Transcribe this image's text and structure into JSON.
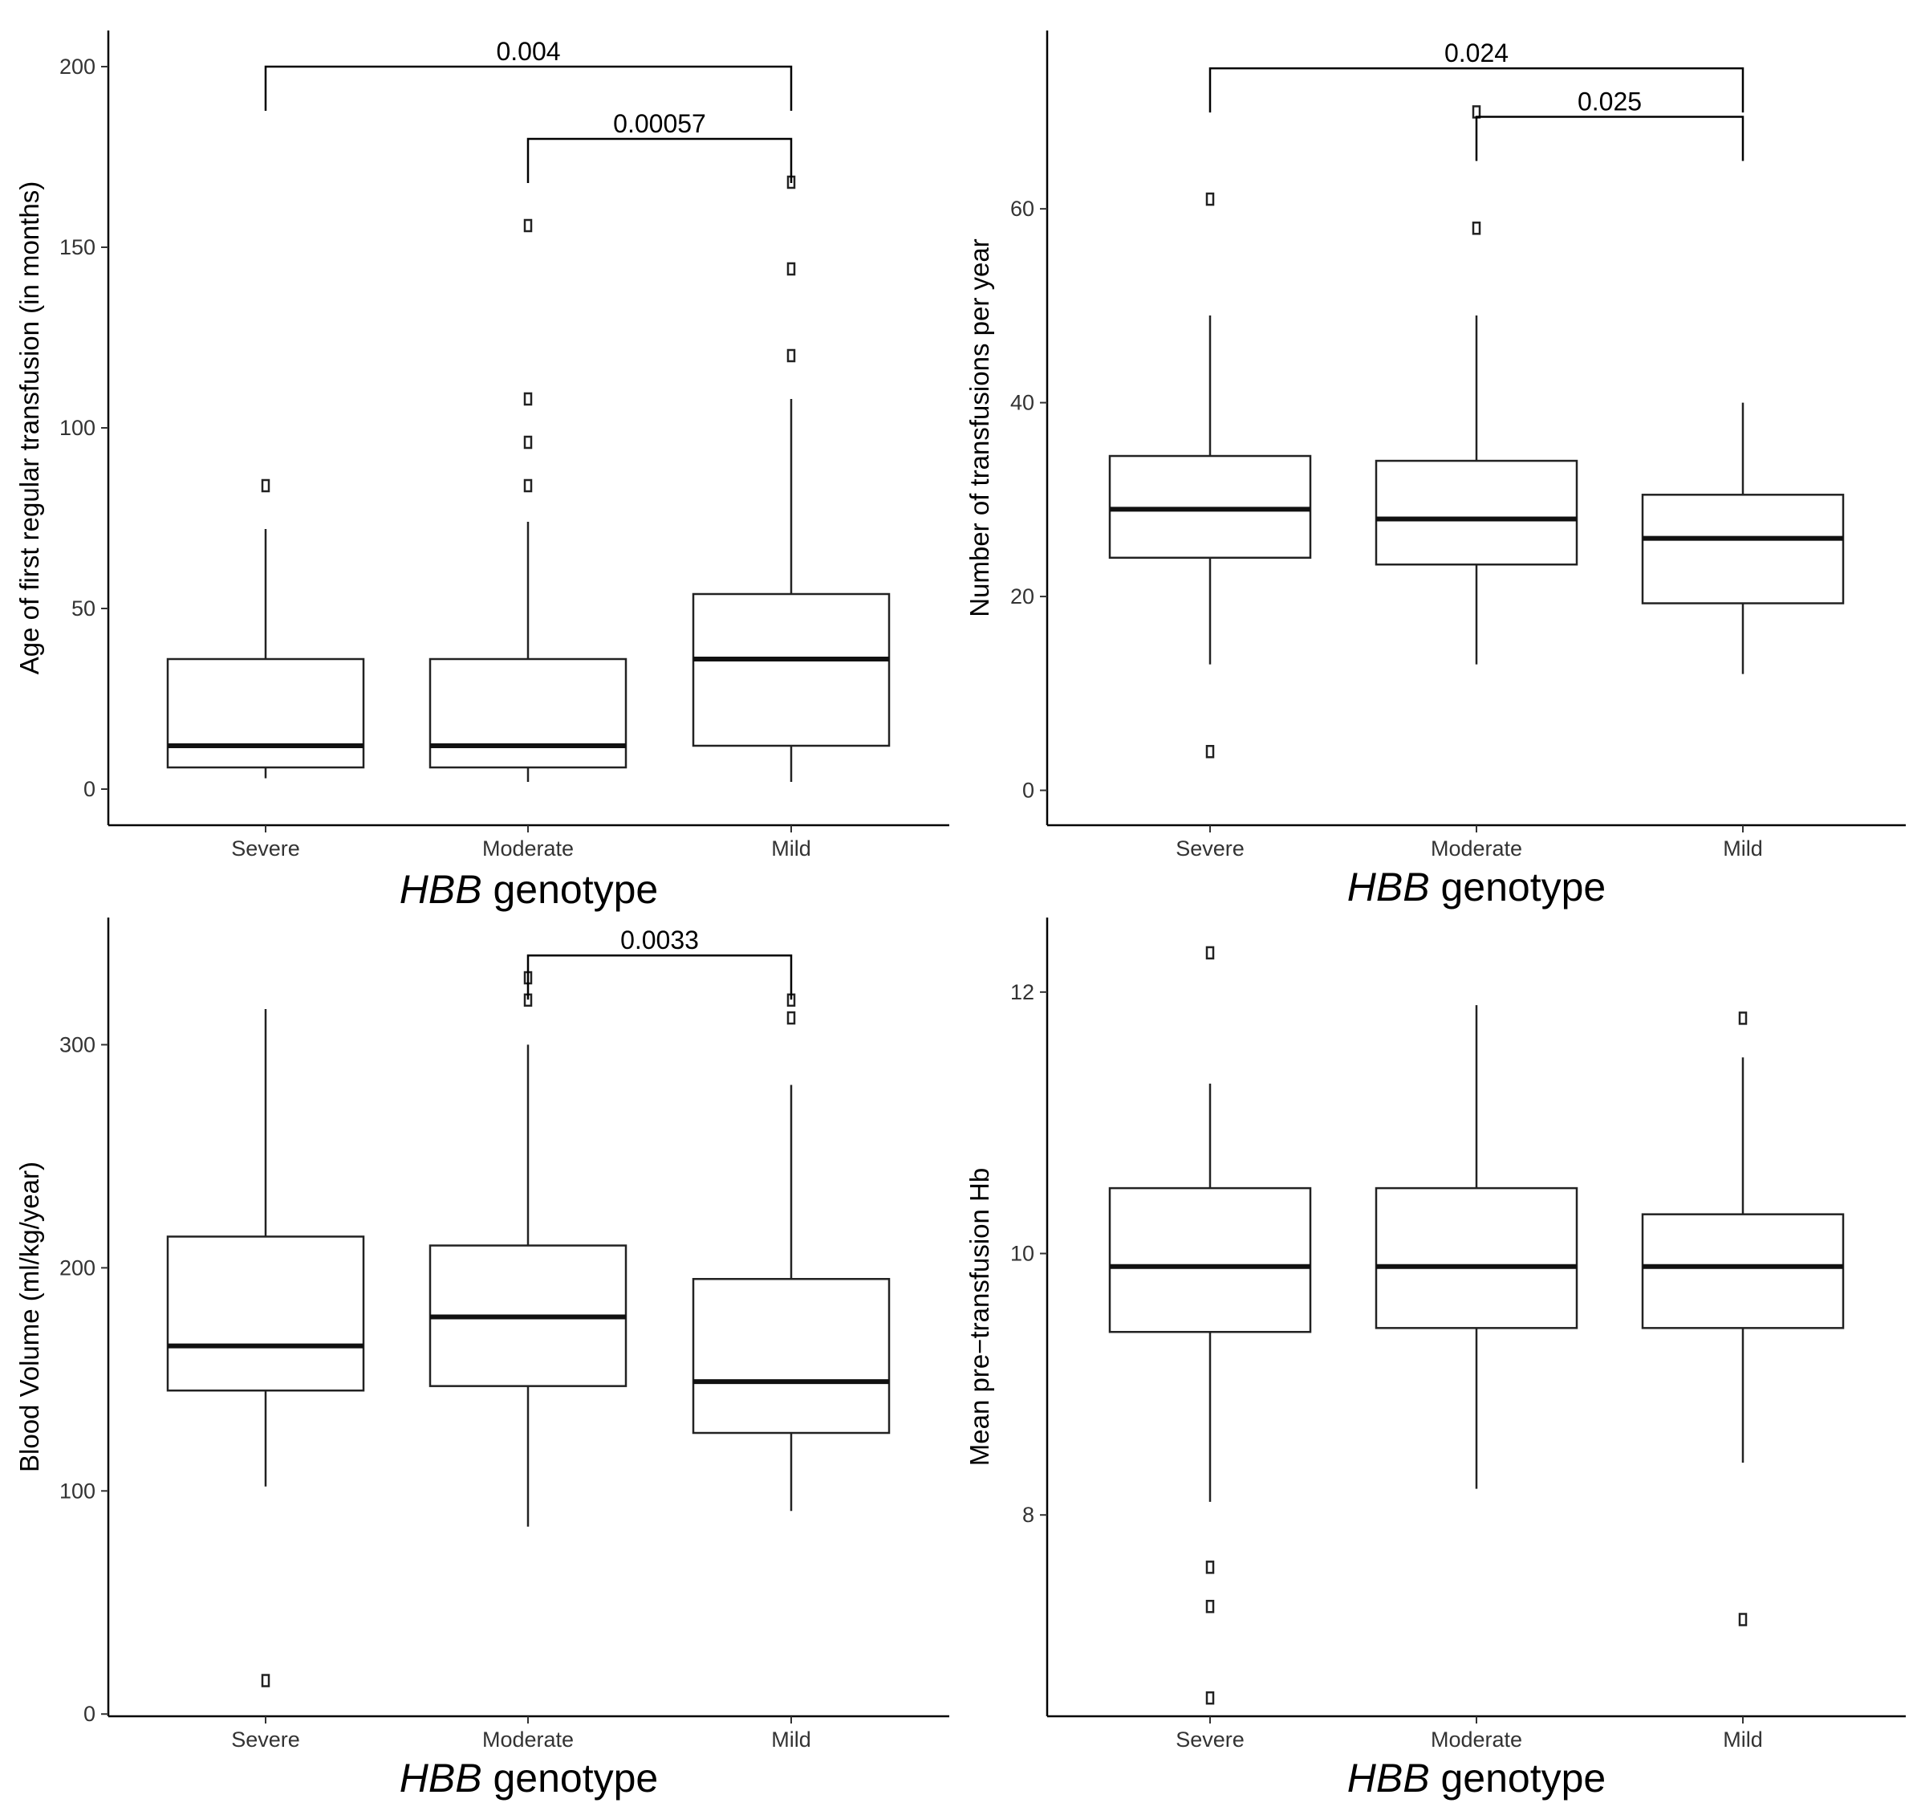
{
  "chart_data": [
    {
      "type": "boxplot",
      "xlabel_italic": "HBB",
      "xlabel_rest": " genotype",
      "ylabel": "Age of first regular transfusion (in months)",
      "categories": [
        "Severe",
        "Moderate",
        "Mild"
      ],
      "ylim": [
        -10,
        210
      ],
      "yticks": [
        0,
        50,
        100,
        150,
        200
      ],
      "boxes": [
        {
          "q1": 6,
          "median": 12,
          "q3": 36,
          "whisker_low": 3,
          "whisker_high": 72,
          "outliers": [
            84
          ]
        },
        {
          "q1": 6,
          "median": 12,
          "q3": 36,
          "whisker_low": 2,
          "whisker_high": 74,
          "outliers": [
            84,
            96,
            108,
            156
          ]
        },
        {
          "q1": 12,
          "median": 36,
          "q3": 54,
          "whisker_low": 2,
          "whisker_high": 108,
          "outliers": [
            120,
            144,
            168
          ]
        }
      ],
      "brackets": [
        {
          "from": 0,
          "to": 2,
          "y": 200,
          "label": "0.004"
        },
        {
          "from": 1,
          "to": 2,
          "y": 180,
          "label": "0.00057"
        }
      ]
    },
    {
      "type": "boxplot",
      "xlabel_italic": "HBB",
      "xlabel_rest": " genotype",
      "ylabel": "Number of transfusions per year",
      "categories": [
        "Severe",
        "Moderate",
        "Mild"
      ],
      "ylim": [
        -3.6,
        78.4
      ],
      "yticks": [
        0,
        20,
        40,
        60
      ],
      "boxes": [
        {
          "q1": 24,
          "median": 29,
          "q3": 34.5,
          "whisker_low": 13,
          "whisker_high": 49,
          "outliers": [
            61,
            4
          ]
        },
        {
          "q1": 23.3,
          "median": 28,
          "q3": 34,
          "whisker_low": 13,
          "whisker_high": 49,
          "outliers": [
            58,
            70
          ]
        },
        {
          "q1": 19.3,
          "median": 26,
          "q3": 30.5,
          "whisker_low": 12,
          "whisker_high": 40,
          "outliers": []
        }
      ],
      "brackets": [
        {
          "from": 0,
          "to": 2,
          "y": 74.5,
          "label": "0.024"
        },
        {
          "from": 1,
          "to": 2,
          "y": 69.5,
          "label": "0.025"
        }
      ]
    },
    {
      "type": "boxplot",
      "xlabel_italic": "HBB",
      "xlabel_rest": " genotype",
      "ylabel": "Blood Volume (ml/kg/year)",
      "categories": [
        "Severe",
        "Moderate",
        "Mild"
      ],
      "ylim": [
        -1,
        357
      ],
      "yticks": [
        0,
        100,
        200,
        300
      ],
      "boxes": [
        {
          "q1": 145,
          "median": 165,
          "q3": 214,
          "whisker_low": 102,
          "whisker_high": 316,
          "outliers": [
            15
          ]
        },
        {
          "q1": 147,
          "median": 178,
          "q3": 210,
          "whisker_low": 84,
          "whisker_high": 300,
          "outliers": [
            320,
            330
          ]
        },
        {
          "q1": 126,
          "median": 149,
          "q3": 195,
          "whisker_low": 91,
          "whisker_high": 282,
          "outliers": [
            312,
            320
          ]
        }
      ],
      "brackets": [
        {
          "from": 1,
          "to": 2,
          "y": 340,
          "label": "0.0033"
        }
      ]
    },
    {
      "type": "boxplot",
      "xlabel_italic": "HBB",
      "xlabel_rest": " genotype",
      "ylabel": "Mean pre−transfusion Hb",
      "categories": [
        "Severe",
        "Moderate",
        "Mild"
      ],
      "ylim": [
        6.46,
        12.57
      ],
      "yticks": [
        8,
        10,
        12
      ],
      "boxes": [
        {
          "q1": 9.4,
          "median": 9.9,
          "q3": 10.5,
          "whisker_low": 8.1,
          "whisker_high": 11.3,
          "outliers": [
            12.3,
            7.6,
            7.3,
            6.6
          ]
        },
        {
          "q1": 9.43,
          "median": 9.9,
          "q3": 10.5,
          "whisker_low": 8.2,
          "whisker_high": 11.9,
          "outliers": []
        },
        {
          "q1": 9.43,
          "median": 9.9,
          "q3": 10.3,
          "whisker_low": 8.4,
          "whisker_high": 11.5,
          "outliers": [
            11.8,
            7.2
          ]
        }
      ],
      "brackets": []
    }
  ]
}
